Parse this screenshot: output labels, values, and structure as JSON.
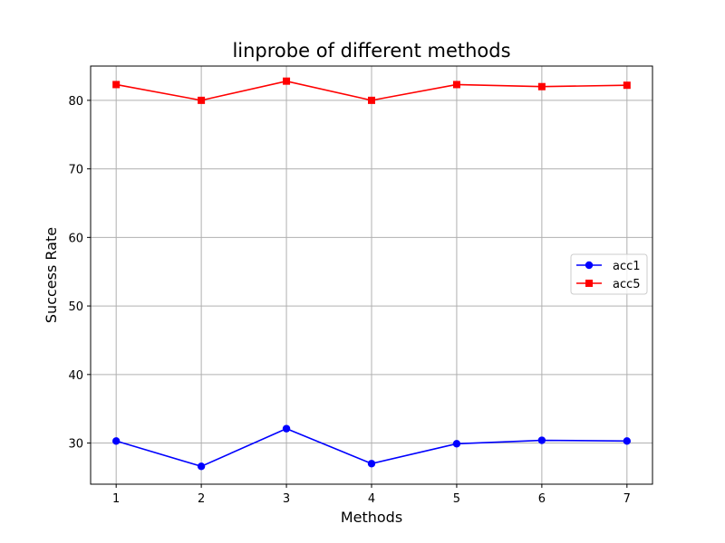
{
  "chart_data": {
    "type": "line",
    "title": "linprobe of different methods",
    "xlabel": "Methods",
    "ylabel": "Success Rate",
    "x": [
      1,
      2,
      3,
      4,
      5,
      6,
      7
    ],
    "x_ticks": [
      "1",
      "2",
      "3",
      "4",
      "5",
      "6",
      "7"
    ],
    "y_ticks": [
      "30",
      "40",
      "50",
      "60",
      "70",
      "80"
    ],
    "xlim": [
      0.7,
      7.3
    ],
    "ylim": [
      24,
      85
    ],
    "grid": true,
    "legend_position": "center-right",
    "series": [
      {
        "name": "acc1",
        "color": "#0000ff",
        "marker": "circle",
        "values": [
          30.3,
          26.6,
          32.1,
          27.0,
          29.9,
          30.4,
          30.3
        ]
      },
      {
        "name": "acc5",
        "color": "#ff0000",
        "marker": "square",
        "values": [
          82.3,
          80.0,
          82.8,
          80.0,
          82.3,
          82.0,
          82.2
        ]
      }
    ]
  }
}
